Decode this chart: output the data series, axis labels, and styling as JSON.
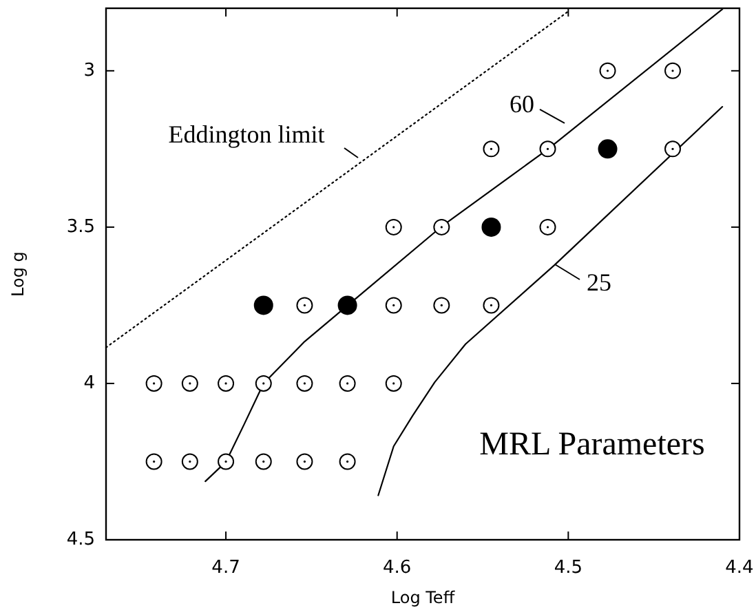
{
  "chart_data": {
    "type": "scatter",
    "xlabel": "Log Teff",
    "ylabel": "Log g",
    "xlim": [
      4.77,
      4.4
    ],
    "ylim": [
      4.5,
      2.8
    ],
    "xticks": [
      4.7,
      4.6,
      4.5,
      4.4
    ],
    "yticks": [
      3,
      3.5,
      4,
      4.5
    ],
    "grid": false,
    "series": [
      {
        "type": "line",
        "line_style": "dotted",
        "color": "#000000",
        "x": [
          4.77,
          4.5
        ],
        "values": [
          3.885,
          2.81
        ]
      },
      {
        "type": "line",
        "line_style": "solid",
        "color": "#000000",
        "x": [
          4.712,
          4.7,
          4.689,
          4.678,
          4.654,
          4.629,
          4.574,
          4.512,
          4.41
        ],
        "values": [
          4.313,
          4.251,
          4.127,
          4.0,
          3.866,
          3.751,
          3.498,
          3.251,
          2.803
        ]
      },
      {
        "type": "line",
        "line_style": "solid",
        "color": "#000000",
        "x": [
          4.611,
          4.602,
          4.591,
          4.578,
          4.56,
          4.508,
          4.41
        ],
        "values": [
          4.358,
          4.201,
          4.104,
          3.996,
          3.874,
          3.621,
          3.115
        ]
      },
      {
        "marker": "circle",
        "color": "#ffffff",
        "x": [
          4.477,
          4.439,
          4.545,
          4.512,
          4.439,
          4.602,
          4.574,
          4.512,
          4.654,
          4.602,
          4.574,
          4.545,
          4.742,
          4.721,
          4.7,
          4.678,
          4.654,
          4.629,
          4.602,
          4.742,
          4.721,
          4.7,
          4.678,
          4.654,
          4.629
        ],
        "values": [
          3,
          3,
          3.25,
          3.25,
          3.25,
          3.5,
          3.5,
          3.5,
          3.75,
          3.75,
          3.75,
          3.75,
          4,
          4,
          4,
          4,
          4,
          4,
          4,
          4.25,
          4.25,
          4.25,
          4.25,
          4.25,
          4.25
        ]
      },
      {
        "marker": "circle",
        "color": "#000000",
        "x": [
          4.477,
          4.545,
          4.678,
          4.629
        ],
        "values": [
          3.25,
          3.5,
          3.75,
          3.75
        ]
      }
    ],
    "annotations": [
      "Eddington limit",
      "60",
      "25",
      "MRL Parameters"
    ]
  }
}
